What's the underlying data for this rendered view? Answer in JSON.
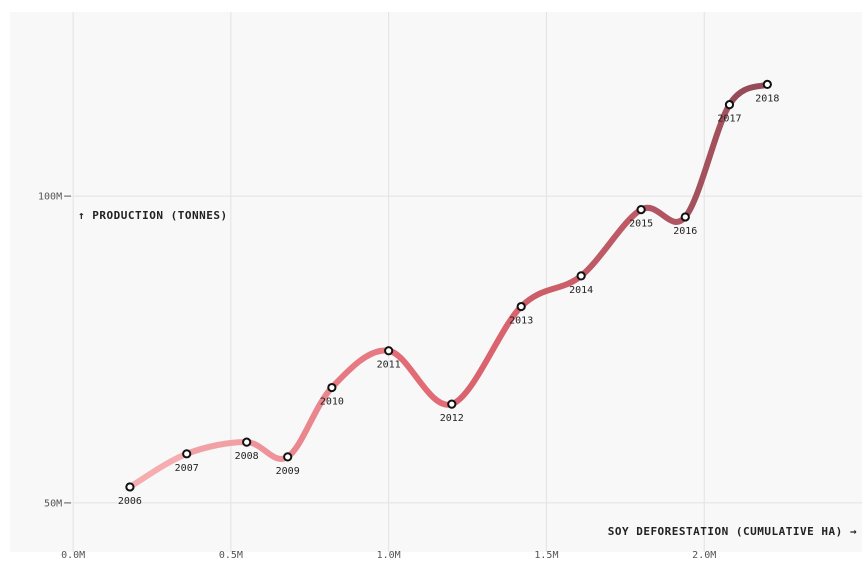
{
  "chart_data": {
    "type": "line",
    "xlabel": "Soy deforestation (cumulative ha) →",
    "ylabel": "↑ Production (tonnes)",
    "x_ticks": [
      {
        "value": 0.0,
        "label": "0.0M"
      },
      {
        "value": 0.5,
        "label": "0.5M"
      },
      {
        "value": 1.0,
        "label": "1.0M"
      },
      {
        "value": 1.5,
        "label": "1.5M"
      },
      {
        "value": 2.0,
        "label": "2.0M"
      }
    ],
    "y_ticks": [
      {
        "value": 50,
        "label": "50M"
      },
      {
        "value": 100,
        "label": "100M"
      }
    ],
    "xlim": [
      -0.2,
      2.5
    ],
    "ylim": [
      42,
      130
    ],
    "x_unit": "M ha",
    "y_unit": "M tonnes",
    "grid": true,
    "colors": {
      "start": "#f7b3b6",
      "mid": "#e06570",
      "end": "#8e4a56",
      "background": "#f8f8f8",
      "grid": "#e2e2e2"
    },
    "points": [
      {
        "label": "2006",
        "x": 0.18,
        "y": 52.6
      },
      {
        "label": "2007",
        "x": 0.36,
        "y": 58.0
      },
      {
        "label": "2008",
        "x": 0.55,
        "y": 59.9
      },
      {
        "label": "2009",
        "x": 0.68,
        "y": 57.5
      },
      {
        "label": "2010",
        "x": 0.82,
        "y": 68.8
      },
      {
        "label": "2011",
        "x": 1.0,
        "y": 74.8
      },
      {
        "label": "2012",
        "x": 1.2,
        "y": 66.1
      },
      {
        "label": "2013",
        "x": 1.42,
        "y": 82.0
      },
      {
        "label": "2014",
        "x": 1.61,
        "y": 87.0
      },
      {
        "label": "2015",
        "x": 1.8,
        "y": 97.8
      },
      {
        "label": "2016",
        "x": 1.94,
        "y": 96.6
      },
      {
        "label": "2017",
        "x": 2.08,
        "y": 114.9
      },
      {
        "label": "2018",
        "x": 2.2,
        "y": 118.2
      }
    ]
  }
}
